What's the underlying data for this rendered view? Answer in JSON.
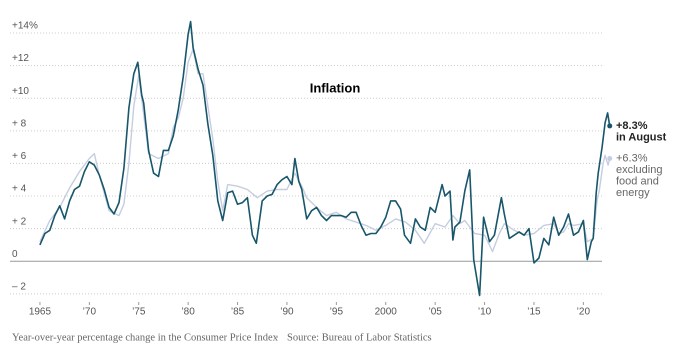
{
  "chart_data": {
    "type": "line",
    "title": "Inflation",
    "caption": "Year-over-year percentage change in the Consumer Price Index",
    "source": "Source: Bureau of Labor Statistics",
    "xlim": [
      1964.5,
      2023
    ],
    "ylim": [
      -2.5,
      15
    ],
    "grid": true,
    "xticks": [
      1965,
      {
        "value": 1970,
        "label": "’70"
      },
      {
        "value": 1975,
        "label": "’75"
      },
      {
        "value": 1980,
        "label": "’80"
      },
      {
        "value": 1985,
        "label": "’85"
      },
      {
        "value": 1990,
        "label": "’90"
      },
      {
        "value": 1995,
        "label": "’95"
      },
      2000,
      {
        "value": 2005,
        "label": "’05"
      },
      {
        "value": 2010,
        "label": "’10"
      },
      {
        "value": 2015,
        "label": "’15"
      },
      {
        "value": 2020,
        "label": "’20"
      }
    ],
    "yticks": [
      {
        "value": -2,
        "label": "– 2"
      },
      0,
      {
        "value": 2,
        "label": "+ 2"
      },
      {
        "value": 4,
        "label": "+ 4"
      },
      {
        "value": 6,
        "label": "+ 6"
      },
      {
        "value": 8,
        "label": "+ 8"
      },
      {
        "value": 10,
        "label": "+10"
      },
      {
        "value": 12,
        "label": "+12"
      },
      {
        "value": 14,
        "label": "+14%"
      }
    ],
    "series": [
      {
        "name": "excluding food and energy",
        "color": "#c5cde0",
        "end_label": [
          "+6.3%",
          "excluding",
          "food and",
          "energy"
        ],
        "x": [
          1965,
          1966,
          1967,
          1968,
          1969,
          1970,
          1970.5,
          1971,
          1972,
          1973,
          1973.5,
          1974,
          1974.5,
          1975,
          1975.5,
          1976,
          1977,
          1978,
          1978.5,
          1979,
          1979.5,
          1980,
          1980.5,
          1981,
          1981.5,
          1982,
          1982.5,
          1983,
          1983.5,
          1984,
          1985,
          1986,
          1987,
          1988,
          1989,
          1990,
          1990.8,
          1991.5,
          1992,
          1993,
          1994,
          1995,
          1996,
          1997,
          1998,
          1999,
          2000,
          2001,
          2002,
          2003,
          2003.9,
          2005,
          2006,
          2006.8,
          2007.5,
          2008,
          2009,
          2010,
          2010.8,
          2011.5,
          2012,
          2013,
          2014,
          2015,
          2016,
          2017,
          2017.5,
          2018,
          2018.5,
          2019,
          2020,
          2020.4,
          2021,
          2021.4,
          2021.6,
          2022,
          2022.2,
          2022.5,
          2022.67
        ],
        "values": [
          1.2,
          2.5,
          3.3,
          4.5,
          5.5,
          6.3,
          6.6,
          5.3,
          3.1,
          2.8,
          3.5,
          6.0,
          9.5,
          11.4,
          9.0,
          6.6,
          6.3,
          6.6,
          8.2,
          8.8,
          10.0,
          12.2,
          13.0,
          11.5,
          11.5,
          9.5,
          7.5,
          4.9,
          3.1,
          4.7,
          4.6,
          4.4,
          3.9,
          4.3,
          4.4,
          4.4,
          5.4,
          4.6,
          3.9,
          3.3,
          2.8,
          3.0,
          2.6,
          2.4,
          2.2,
          1.9,
          2.2,
          2.6,
          2.4,
          1.9,
          1.1,
          2.3,
          2.1,
          2.8,
          2.3,
          2.5,
          1.7,
          1.6,
          0.6,
          1.7,
          2.3,
          1.9,
          1.6,
          1.7,
          2.2,
          2.3,
          1.7,
          1.8,
          2.3,
          2.2,
          2.3,
          1.2,
          1.4,
          3.8,
          4.3,
          6.0,
          6.5,
          5.9,
          6.3
        ]
      },
      {
        "name": "Consumer Price Index",
        "color": "#17566b",
        "end_label": [
          "+8.3%",
          "in August"
        ],
        "x": [
          1965,
          1965.5,
          1966,
          1966.5,
          1967,
          1967.5,
          1968,
          1968.5,
          1969,
          1969.5,
          1970,
          1970.5,
          1971,
          1971.5,
          1972,
          1972.5,
          1973,
          1973.5,
          1974,
          1974.5,
          1974.9,
          1975.3,
          1975.5,
          1976,
          1976.5,
          1977,
          1977.5,
          1978,
          1978.5,
          1979,
          1979.5,
          1980,
          1980.25,
          1980.5,
          1981,
          1981.5,
          1982,
          1982.5,
          1983,
          1983.5,
          1984,
          1984.5,
          1985,
          1985.5,
          1986,
          1986.5,
          1986.9,
          1987.5,
          1988,
          1988.5,
          1989,
          1989.5,
          1990,
          1990.5,
          1990.8,
          1991.2,
          1991.5,
          1992,
          1992.5,
          1993,
          1993.5,
          1994,
          1994.5,
          1995,
          1995.5,
          1996,
          1996.5,
          1997,
          1997.5,
          1998,
          1998.5,
          1999,
          1999.5,
          2000,
          2000.5,
          2001,
          2001.5,
          2001.9,
          2002.5,
          2003,
          2003.5,
          2004,
          2004.5,
          2005,
          2005.7,
          2006,
          2006.5,
          2006.8,
          2007,
          2007.5,
          2008,
          2008.5,
          2008.9,
          2009.5,
          2009.9,
          2010.5,
          2011,
          2011.7,
          2012,
          2012.5,
          2013,
          2013.5,
          2014,
          2014.5,
          2015,
          2015.5,
          2016,
          2016.5,
          2017,
          2017.5,
          2018,
          2018.5,
          2019,
          2019.5,
          2020,
          2020.4,
          2020.8,
          2021,
          2021.3,
          2021.5,
          2021.9,
          2022.2,
          2022.45,
          2022.67
        ],
        "values": [
          1.0,
          1.7,
          1.9,
          2.8,
          3.4,
          2.6,
          3.7,
          4.4,
          4.6,
          5.5,
          6.1,
          5.9,
          5.3,
          4.4,
          3.3,
          2.9,
          3.6,
          5.7,
          9.4,
          11.5,
          12.2,
          10.2,
          9.7,
          6.8,
          5.4,
          5.2,
          6.8,
          6.8,
          7.7,
          9.3,
          11.3,
          13.9,
          14.7,
          13.1,
          11.8,
          10.8,
          8.4,
          6.5,
          3.7,
          2.5,
          4.2,
          4.3,
          3.5,
          3.6,
          3.9,
          1.6,
          1.1,
          3.7,
          4.0,
          4.1,
          4.7,
          5.0,
          5.2,
          4.7,
          6.3,
          4.9,
          4.4,
          2.6,
          3.1,
          3.3,
          2.8,
          2.5,
          2.8,
          2.8,
          2.8,
          2.7,
          3.0,
          3.0,
          2.2,
          1.6,
          1.7,
          1.7,
          2.1,
          2.7,
          3.7,
          3.7,
          3.2,
          1.6,
          1.1,
          2.6,
          2.1,
          1.9,
          3.3,
          3.0,
          4.7,
          4.0,
          4.3,
          1.3,
          2.1,
          2.4,
          4.3,
          5.6,
          0.1,
          -2.1,
          2.7,
          1.2,
          1.6,
          3.9,
          2.9,
          1.4,
          1.6,
          1.8,
          1.6,
          2.0,
          -0.1,
          0.2,
          1.4,
          1.0,
          2.7,
          1.6,
          2.1,
          2.9,
          1.6,
          1.8,
          2.5,
          0.1,
          1.2,
          1.4,
          4.2,
          5.4,
          7.0,
          8.5,
          9.1,
          8.3
        ]
      }
    ]
  }
}
